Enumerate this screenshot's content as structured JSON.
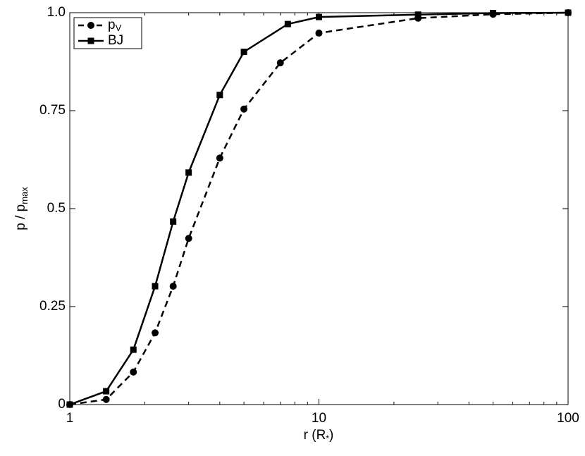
{
  "chart_data": {
    "type": "line",
    "xlabel": [
      "r (R",
      "*",
      ")"
    ],
    "ylabel": [
      "p / p",
      "max"
    ],
    "xscale": "log",
    "xlim": [
      1,
      100
    ],
    "xticks": [
      1,
      10,
      100
    ],
    "ylim": [
      0,
      1
    ],
    "yticks": [
      0,
      0.25,
      0.5,
      0.75,
      {
        "value": 1,
        "label": "1.0"
      }
    ],
    "legend": "upper left",
    "series": [
      {
        "name": "p",
        "name_sub": "V",
        "color": "#000000",
        "dash": true,
        "marker": "circle",
        "x": [
          1,
          1.4,
          1.8,
          2.2,
          2.6,
          3,
          4,
          5,
          7,
          10,
          25,
          50,
          100
        ],
        "values": [
          0,
          0.013,
          0.083,
          0.183,
          0.302,
          0.424,
          0.629,
          0.754,
          0.872,
          0.948,
          0.986,
          0.996,
          1
        ]
      },
      {
        "name": "BJ",
        "color": "#000000",
        "dash": false,
        "marker": "square",
        "x": [
          1,
          1.4,
          1.8,
          2.2,
          2.6,
          3,
          4,
          5,
          7.5,
          10,
          25,
          50,
          100
        ],
        "values": [
          0,
          0.034,
          0.14,
          0.302,
          0.467,
          0.592,
          0.79,
          0.9,
          0.971,
          0.989,
          0.995,
          0.999,
          1
        ]
      }
    ]
  }
}
